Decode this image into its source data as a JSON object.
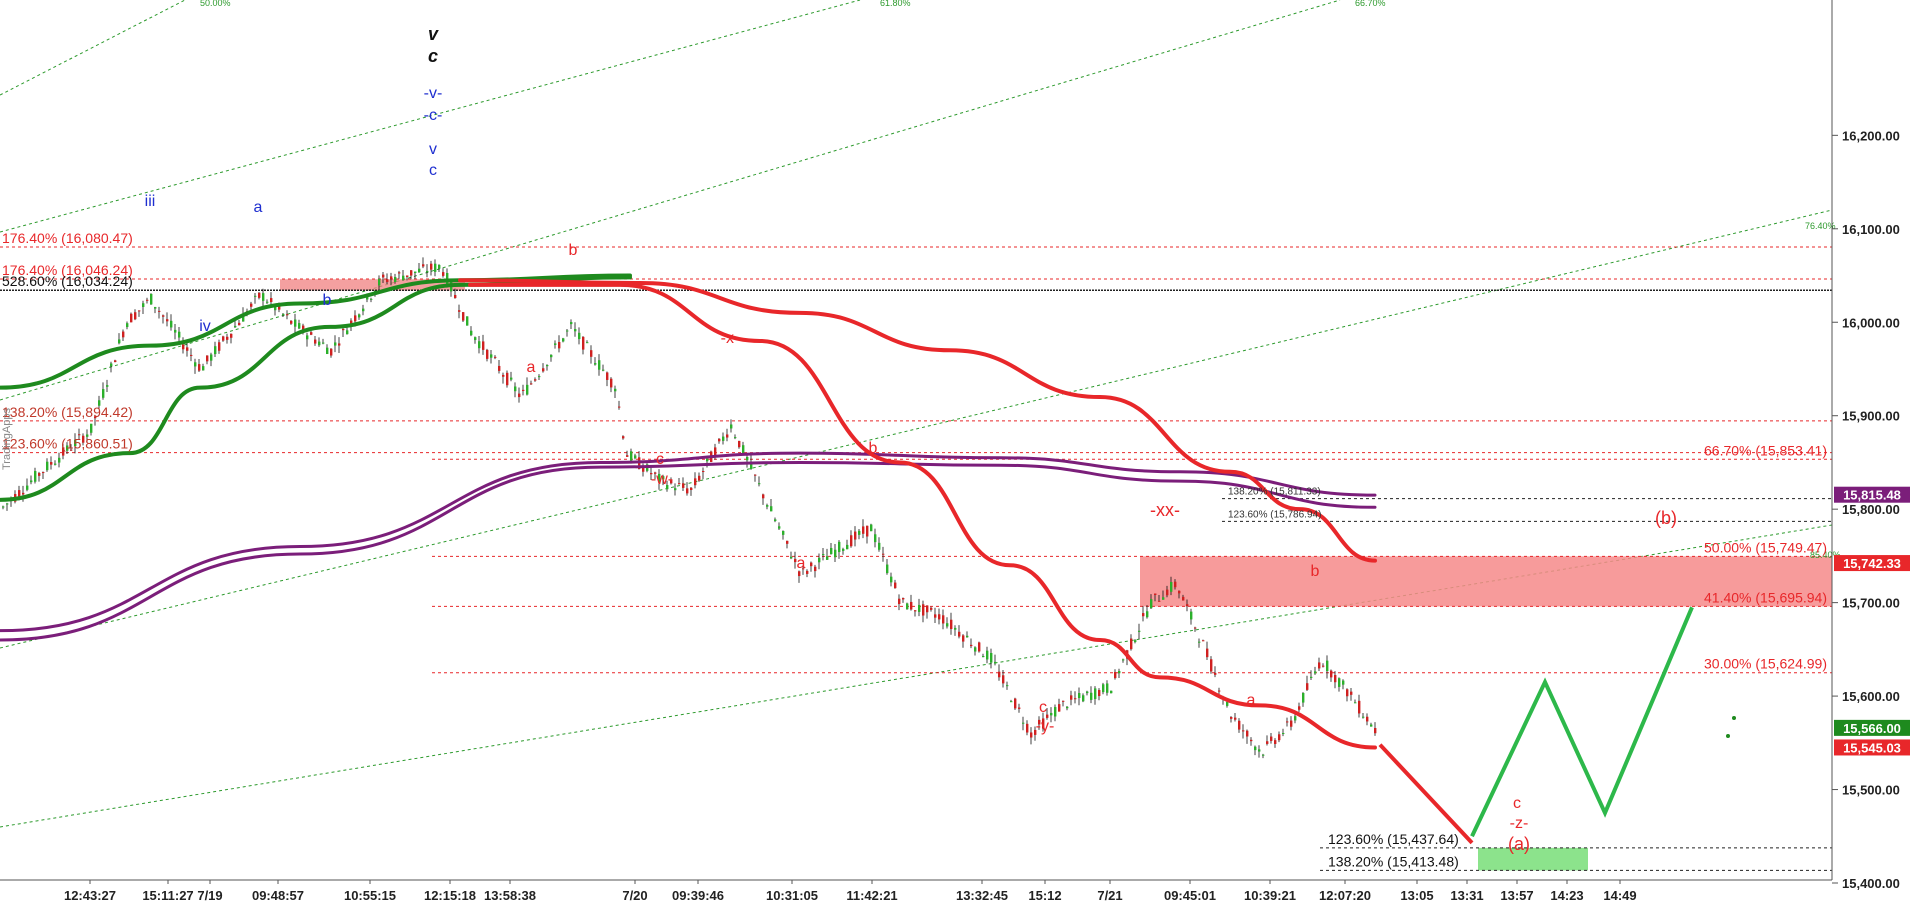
{
  "chart_data": {
    "type": "line",
    "instrument_axis": "price",
    "ylim": [
      15345,
      16345
    ],
    "y_ticks": [
      "16,200.00",
      "16,100.00",
      "16,000.00",
      "15,900.00",
      "15,800.00",
      "15,700.00",
      "15,600.00",
      "15,500.00",
      "15,400.00"
    ],
    "y_tick_values": [
      16200,
      16100,
      16000,
      15900,
      15800,
      15700,
      15600,
      15500,
      15400
    ],
    "x_ticks": [
      "12:43:27",
      "15:11:27",
      "7/19",
      "09:48:57",
      "10:55:15",
      "12:15:18",
      "13:58:38",
      "7/20",
      "09:39:46",
      "10:31:05",
      "11:42:21",
      "13:32:45",
      "15:12",
      "7/21",
      "09:45:01",
      "10:39:21",
      "12:07:20",
      "13:05",
      "13:31",
      "13:57",
      "14:23",
      "14:49"
    ],
    "watermark": "TradingApps",
    "price_badges": [
      {
        "label": "15,815.48",
        "value": 15815.48,
        "color": "#7b1e7a"
      },
      {
        "label": "15,742.33",
        "value": 15742.33,
        "color": "#e8272a"
      },
      {
        "label": "15,566.00",
        "value": 15566.0,
        "color": "#1e8a1e"
      },
      {
        "label": "15,545.03",
        "value": 15545.03,
        "color": "#e8272a"
      }
    ],
    "fib_levels": [
      {
        "label": "176.40% (16,080.47)",
        "value": 16080.47,
        "color": "#e8272a",
        "side": "left"
      },
      {
        "label": "176.40% (16,046.24)",
        "value": 16046.24,
        "color": "#e8272a",
        "side": "left"
      },
      {
        "label": "528.60% (16,034.24)",
        "value": 16034.24,
        "color": "#111111",
        "side": "left"
      },
      {
        "label": "138.20% (15,894.42)",
        "value": 15894.42,
        "color": "#c0392b",
        "side": "left"
      },
      {
        "label": "123.60% (15,860.51)",
        "value": 15860.51,
        "color": "#c0392b",
        "side": "left"
      },
      {
        "label": "66.70% (15,853.41)",
        "value": 15853.41,
        "color": "#e8272a",
        "side": "right"
      },
      {
        "label": "50.00% (15,749.47)",
        "value": 15749.47,
        "color": "#e8272a",
        "side": "right"
      },
      {
        "label": "41.40% (15,695.94)",
        "value": 15695.94,
        "color": "#e8272a",
        "side": "right"
      },
      {
        "label": "30.00% (15,624.99)",
        "value": 15624.99,
        "color": "#e8272a",
        "side": "right"
      },
      {
        "label": "138.20% (15,811.33)",
        "value": 15811.33,
        "color": "#333333",
        "side": "small"
      },
      {
        "label": "123.60% (15,786.94)",
        "value": 15786.94,
        "color": "#333333",
        "side": "small"
      },
      {
        "label": "123.60% (15,437.64)",
        "value": 15437.64,
        "color": "#111111",
        "side": "bottom"
      },
      {
        "label": "138.20% (15,413.48)",
        "value": 15413.48,
        "color": "#111111",
        "side": "bottom"
      }
    ],
    "fan_labels": [
      "50.00%",
      "61.80%",
      "66.70%",
      "76.40%",
      "85.40%"
    ],
    "wave_labels_blue": [
      "iii",
      "iv",
      "a",
      "b",
      "-v-",
      "-c-",
      "v",
      "c"
    ],
    "wave_labels_black": [
      "v",
      "c"
    ],
    "wave_labels_red": [
      "b",
      "a",
      "-x-",
      "c",
      "-w-",
      "a",
      "b",
      "c",
      "-y-",
      "-xx-",
      "a",
      "b",
      "(b)",
      "c",
      "-z-",
      "(a)"
    ],
    "series": [
      {
        "role": "price",
        "color": "#111111"
      },
      {
        "role": "ma",
        "color": "#1e8a1e"
      },
      {
        "role": "ma",
        "color": "#7b1e7a"
      },
      {
        "role": "ma",
        "color": "#e8272a"
      },
      {
        "role": "projection",
        "color": "#e8272a"
      },
      {
        "role": "projection",
        "color": "#2db84a"
      }
    ],
    "grid": false
  }
}
